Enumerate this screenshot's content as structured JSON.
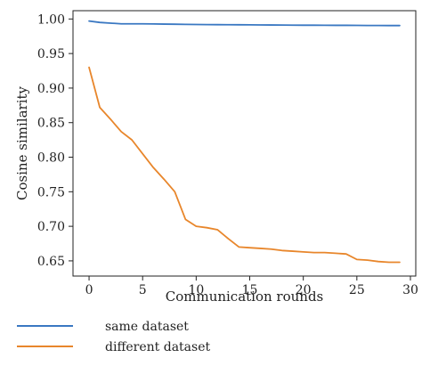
{
  "chart_data": {
    "type": "line",
    "title": "",
    "xlabel": "Communication rounds",
    "ylabel": "Cosine similarity",
    "xlim": [
      -1.5,
      30.5
    ],
    "ylim": [
      0.628,
      1.012
    ],
    "xticks": [
      0,
      5,
      10,
      15,
      20,
      25,
      30
    ],
    "yticks": [
      0.65,
      0.7,
      0.75,
      0.8,
      0.85,
      0.9,
      0.95,
      1.0
    ],
    "xtick_labels": [
      "0",
      "5",
      "10",
      "15",
      "20",
      "25",
      "30"
    ],
    "ytick_labels": [
      "0.65",
      "0.70",
      "0.75",
      "0.80",
      "0.85",
      "0.90",
      "0.95",
      "1.00"
    ],
    "grid": false,
    "legend_position": "below-left",
    "series": [
      {
        "name": "same dataset",
        "color": "#3a78c2",
        "x": [
          0,
          1,
          2,
          3,
          4,
          5,
          6,
          7,
          8,
          9,
          10,
          11,
          12,
          13,
          14,
          15,
          16,
          17,
          18,
          19,
          20,
          21,
          22,
          23,
          24,
          25,
          26,
          27,
          28,
          29
        ],
        "y": [
          0.997,
          0.995,
          0.994,
          0.993,
          0.993,
          0.993,
          0.9928,
          0.9926,
          0.9924,
          0.9922,
          0.992,
          0.9919,
          0.9918,
          0.9917,
          0.9916,
          0.9915,
          0.9914,
          0.9913,
          0.9912,
          0.9911,
          0.991,
          0.991,
          0.9909,
          0.9908,
          0.9908,
          0.9907,
          0.9906,
          0.9906,
          0.9905,
          0.9905
        ]
      },
      {
        "name": "different dataset",
        "color": "#e8862b",
        "x": [
          0,
          1,
          2,
          3,
          4,
          5,
          6,
          7,
          8,
          9,
          10,
          11,
          12,
          13,
          14,
          15,
          16,
          17,
          18,
          19,
          20,
          21,
          22,
          23,
          24,
          25,
          26,
          27,
          28,
          29
        ],
        "y": [
          0.93,
          0.872,
          0.855,
          0.837,
          0.825,
          0.805,
          0.785,
          0.768,
          0.75,
          0.71,
          0.7,
          0.698,
          0.695,
          0.682,
          0.67,
          0.669,
          0.668,
          0.667,
          0.665,
          0.664,
          0.663,
          0.662,
          0.662,
          0.661,
          0.66,
          0.652,
          0.651,
          0.649,
          0.648,
          0.648
        ]
      }
    ]
  }
}
